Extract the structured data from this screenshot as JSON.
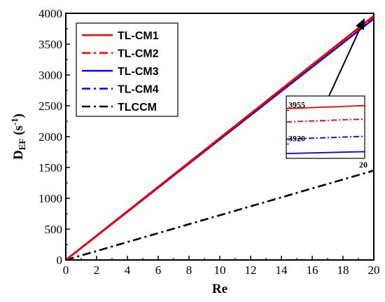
{
  "chart_data": {
    "type": "line",
    "xlabel": "Re",
    "ylabel_main": "D",
    "ylabel_sub": "EF",
    "ylabel_unit": " (s",
    "ylabel_exp": "-1",
    "ylabel_close": ")",
    "xlim": [
      0,
      20
    ],
    "ylim": [
      0,
      4000
    ],
    "xticks": [
      0,
      2,
      4,
      6,
      8,
      10,
      12,
      14,
      16,
      18,
      20
    ],
    "yticks": [
      0,
      500,
      1000,
      1500,
      2000,
      2500,
      3000,
      3500,
      4000
    ],
    "grid": false,
    "legend_position": "top-left",
    "series": [
      {
        "name": "TL-CM1",
        "color": "#ff0000",
        "style": "solid",
        "x": [
          0,
          20
        ],
        "y": [
          0,
          3960
        ]
      },
      {
        "name": "TL-CM2",
        "color": "#ff0000",
        "style": "dashdot",
        "x": [
          0,
          20
        ],
        "y": [
          0,
          3946
        ]
      },
      {
        "name": "TL-CM3",
        "color": "#0000ff",
        "style": "solid",
        "x": [
          0,
          20
        ],
        "y": [
          0,
          3912
        ]
      },
      {
        "name": "TL-CM4",
        "color": "#0000ff",
        "style": "dashdot",
        "x": [
          0,
          20
        ],
        "y": [
          0,
          3928
        ]
      },
      {
        "name": "TLCCM",
        "color": "#000000",
        "style": "dashdot",
        "x": [
          0,
          20
        ],
        "y": [
          0,
          1450
        ]
      }
    ],
    "inset": {
      "x_label": "20",
      "ytick_values": [
        3955,
        3920
      ],
      "ytick_labels": [
        "3955",
        "3920"
      ],
      "ylim": [
        3905,
        3970
      ],
      "values": [
        {
          "series": "TL-CM1",
          "y": [
            3957,
            3960
          ]
        },
        {
          "series": "TL-CM2",
          "y": [
            3943,
            3946
          ]
        },
        {
          "series": "TL-CM4",
          "y": [
            3925,
            3928
          ]
        },
        {
          "series": "TL-CM3",
          "y": [
            3910,
            3912
          ]
        }
      ]
    }
  }
}
